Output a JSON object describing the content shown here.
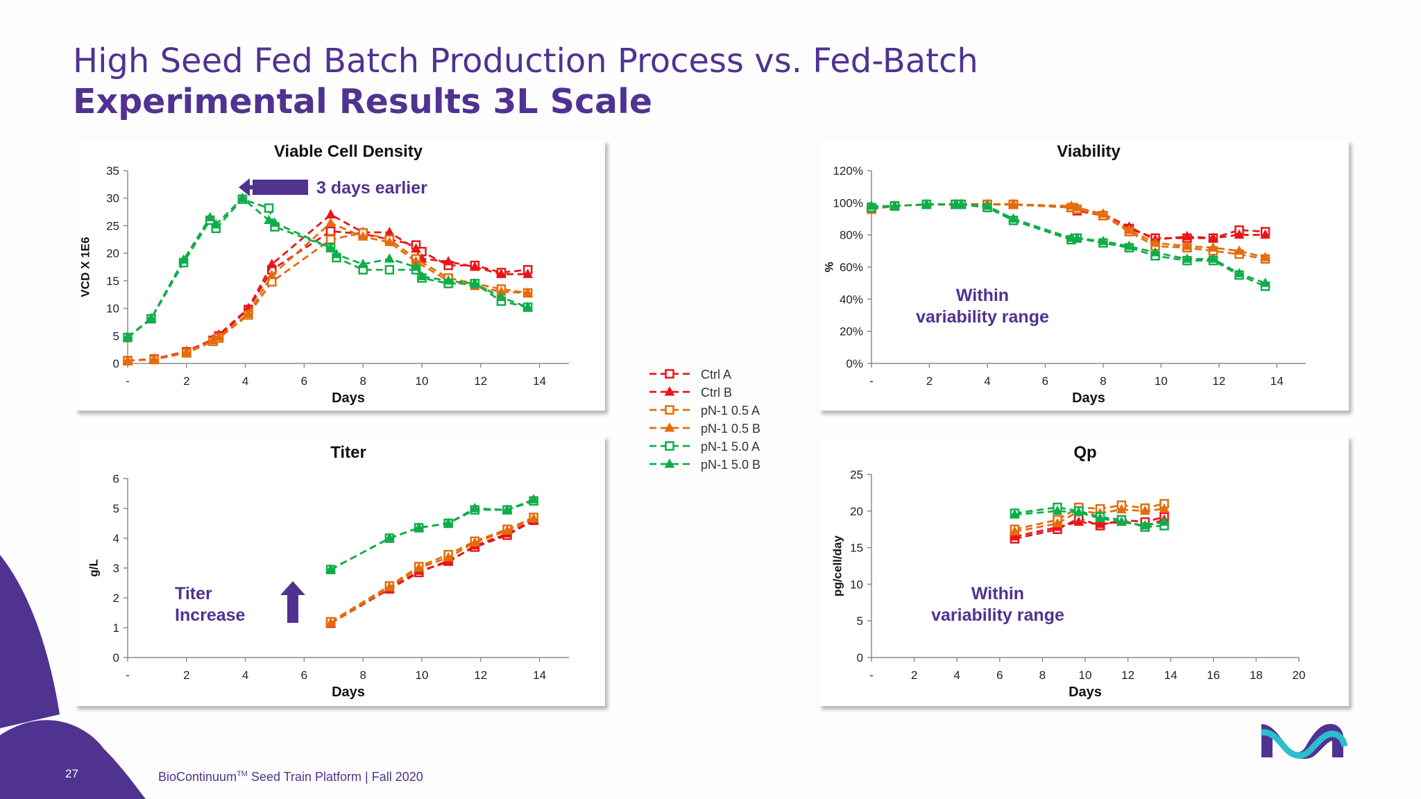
{
  "slide": {
    "title": "High Seed Fed Batch Production Process vs. Fed-Batch",
    "subtitle": "Experimental Results 3L Scale",
    "page_number": "27",
    "footer_prefix": "BioContinuum",
    "footer_trademark": "TM",
    "footer_suffix": " Seed Train Platform | Fall 2020"
  },
  "colors": {
    "brand": "#503291",
    "red": "#e8151b",
    "orange": "#e46c0a",
    "green": "#10ad4a",
    "logo_teal": "#2dbecd"
  },
  "legend": {
    "items": [
      {
        "label": "Ctrl A",
        "color": "#e8151b",
        "marker": "square"
      },
      {
        "label": "Ctrl B",
        "color": "#e8151b",
        "marker": "triangle"
      },
      {
        "label": "pN-1 0.5 A",
        "color": "#e46c0a",
        "marker": "square"
      },
      {
        "label": "pN-1 0.5 B",
        "color": "#e46c0a",
        "marker": "triangle"
      },
      {
        "label": "pN-1 5.0 A",
        "color": "#10ad4a",
        "marker": "square"
      },
      {
        "label": "pN-1 5.0 B",
        "color": "#10ad4a",
        "marker": "triangle"
      }
    ]
  },
  "chart_data": [
    {
      "id": "vcd",
      "type": "line",
      "title": "Viable Cell Density",
      "xlabel": "Days",
      "ylabel": "VCD X 1E6",
      "xlim": [
        0,
        15
      ],
      "xticks": [
        0,
        2,
        4,
        6,
        8,
        10,
        12,
        14
      ],
      "xticklabels": [
        "-",
        "2",
        "4",
        "6",
        "8",
        "10",
        "12",
        "14"
      ],
      "ylim": [
        0,
        35
      ],
      "yticks": [
        0,
        5,
        10,
        15,
        20,
        25,
        30,
        35
      ],
      "yticklabels": [
        "0",
        "5",
        "10",
        "15",
        "20",
        "25",
        "30",
        "35"
      ],
      "annotations": [
        {
          "text": "3 days earlier",
          "arrow": "left"
        }
      ],
      "series": [
        {
          "name": "Ctrl A",
          "x": [
            0,
            0.9,
            2,
            2.9,
            3.1,
            4.1,
            4.9,
            6.9,
            8,
            8.9,
            9.8,
            10,
            10.9,
            11.8,
            12.7,
            13.6
          ],
          "y": [
            0.5,
            0.8,
            2.1,
            4.2,
            5.0,
            9.8,
            17.0,
            24.0,
            23.5,
            22.5,
            21.5,
            20.3,
            17.8,
            17.8,
            16.5,
            17.0
          ]
        },
        {
          "name": "Ctrl B",
          "x": [
            0,
            0.9,
            2,
            2.9,
            3.1,
            4.1,
            4.9,
            6.9,
            8,
            8.9,
            9.8,
            10,
            10.9,
            11.8,
            12.7,
            13.6
          ],
          "y": [
            0.5,
            0.8,
            2.2,
            4.4,
            5.2,
            10.0,
            18.0,
            27.0,
            23.8,
            23.8,
            20.8,
            19.0,
            18.5,
            17.5,
            16.2,
            16.2
          ]
        },
        {
          "name": "pN-1 0.5 A",
          "x": [
            0,
            0.9,
            2,
            2.9,
            3.1,
            4.1,
            4.9,
            6.9,
            8,
            8.9,
            9.8,
            10.9,
            11.8,
            12.7,
            13.6
          ],
          "y": [
            0.5,
            0.7,
            1.9,
            4.0,
            4.6,
            8.8,
            14.8,
            22.5,
            23.7,
            22.5,
            19.0,
            15.5,
            14.5,
            13.5,
            12.8
          ]
        },
        {
          "name": "pN-1 0.5 B",
          "x": [
            0,
            0.9,
            2,
            2.9,
            3.1,
            4.1,
            4.9,
            6.9,
            8,
            8.9,
            9.8,
            10.9,
            11.8,
            12.7,
            13.6
          ],
          "y": [
            0.5,
            0.7,
            2.0,
            4.2,
            4.8,
            9.0,
            16.0,
            25.5,
            23.0,
            22.0,
            18.5,
            15.0,
            14.0,
            13.0,
            12.8
          ]
        },
        {
          "name": "pN-1 5.0 A",
          "x": [
            0,
            0.8,
            1.9,
            2.8,
            3,
            3.9,
            4.8,
            5,
            6.9,
            7.1,
            8,
            8.9,
            9.8,
            10,
            10.9,
            11.8,
            12.7,
            13.6
          ],
          "y": [
            4.7,
            8.1,
            18.3,
            26.0,
            24.5,
            29.8,
            28.2,
            24.8,
            21.0,
            19.2,
            17.0,
            17.0,
            17.0,
            15.5,
            14.5,
            14.5,
            11.3,
            10.2
          ]
        },
        {
          "name": "pN-1 5.0 B",
          "x": [
            0,
            0.8,
            1.9,
            2.8,
            3,
            3.9,
            4.8,
            5,
            6.9,
            7.1,
            8,
            8.9,
            9.8,
            10,
            10.9,
            11.8,
            12.7,
            13.6
          ],
          "y": [
            4.8,
            8.2,
            18.8,
            26.5,
            25.2,
            30.0,
            26.0,
            25.5,
            21.0,
            19.8,
            18.0,
            19.0,
            17.5,
            15.8,
            15.0,
            14.5,
            12.0,
            10.2
          ]
        }
      ]
    },
    {
      "id": "viability",
      "type": "line",
      "title": "Viability",
      "xlabel": "Days",
      "ylabel": "%",
      "xlim": [
        0,
        15
      ],
      "xticks": [
        0,
        2,
        4,
        6,
        8,
        10,
        12,
        14
      ],
      "xticklabels": [
        "-",
        "2",
        "4",
        "6",
        "8",
        "10",
        "12",
        "14"
      ],
      "ylim": [
        0,
        120
      ],
      "yticks": [
        0,
        20,
        40,
        60,
        80,
        100,
        120
      ],
      "yticklabels": [
        "0%",
        "20%",
        "40%",
        "60%",
        "80%",
        "100%",
        "120%"
      ],
      "annotations": [
        {
          "text": "Within variability range"
        }
      ],
      "series": [
        {
          "name": "Ctrl A",
          "x": [
            0,
            0.8,
            1.9,
            2.9,
            3.1,
            4,
            4.9,
            6.9,
            7.1,
            8,
            8.9,
            9.8,
            10.9,
            11.8,
            12.7,
            13.6
          ],
          "y": [
            97,
            98,
            99,
            99,
            99,
            99,
            99,
            97,
            95,
            92,
            84,
            78,
            78,
            78,
            83,
            82
          ]
        },
        {
          "name": "Ctrl B",
          "x": [
            0,
            0.8,
            1.9,
            2.9,
            3.1,
            4,
            4.9,
            6.9,
            7.1,
            8,
            8.9,
            9.8,
            10.9,
            11.8,
            12.7,
            13.6
          ],
          "y": [
            97,
            98,
            99,
            99,
            99,
            99,
            99,
            97,
            96,
            93,
            85,
            77,
            79,
            78,
            80,
            80
          ]
        },
        {
          "name": "pN-1 0.5 A",
          "x": [
            0,
            0.8,
            1.9,
            2.9,
            3.1,
            4,
            4.9,
            6.9,
            7.1,
            8,
            8.9,
            9.8,
            10.9,
            11.8,
            12.7,
            13.6
          ],
          "y": [
            96,
            98,
            99,
            99,
            99,
            99,
            99,
            97,
            96,
            92,
            82,
            73,
            72,
            70,
            68,
            65
          ]
        },
        {
          "name": "pN-1 0.5 B",
          "x": [
            0,
            0.8,
            1.9,
            2.9,
            3.1,
            4,
            4.9,
            6.9,
            7.1,
            8,
            8.9,
            9.8,
            10.9,
            11.8,
            12.7,
            13.6
          ],
          "y": [
            96,
            98,
            99,
            99,
            99,
            99,
            99,
            98,
            97,
            93,
            83,
            75,
            73,
            72,
            70,
            66
          ]
        },
        {
          "name": "pN-1 5.0 A",
          "x": [
            0,
            0.8,
            1.9,
            2.9,
            3.1,
            4,
            4.9,
            6.9,
            7.1,
            8,
            8.9,
            9.8,
            10.9,
            11.8,
            12.7,
            13.6
          ],
          "y": [
            97,
            98,
            99,
            99,
            99,
            97,
            89,
            77,
            78,
            75,
            72,
            67,
            64,
            64,
            55,
            48
          ]
        },
        {
          "name": "pN-1 5.0 B",
          "x": [
            0,
            0.8,
            1.9,
            2.9,
            3.1,
            4,
            4.9,
            6.9,
            7.1,
            8,
            8.9,
            9.8,
            10.9,
            11.8,
            12.7,
            13.6
          ],
          "y": [
            98,
            98,
            99,
            99,
            99,
            98,
            90,
            78,
            78,
            76,
            73,
            69,
            65,
            65,
            56,
            50
          ]
        }
      ]
    },
    {
      "id": "titer",
      "type": "line",
      "title": "Titer",
      "xlabel": "Days",
      "ylabel": "g/L",
      "xlim": [
        0,
        15
      ],
      "xticks": [
        0,
        2,
        4,
        6,
        8,
        10,
        12,
        14
      ],
      "xticklabels": [
        "-",
        "2",
        "4",
        "6",
        "8",
        "10",
        "12",
        "14"
      ],
      "ylim": [
        0,
        6
      ],
      "yticks": [
        0,
        1,
        2,
        3,
        4,
        5,
        6
      ],
      "yticklabels": [
        "0",
        "1",
        "2",
        "3",
        "4",
        "5",
        "6"
      ],
      "annotations": [
        {
          "text_line1": "Titer",
          "text_line2": "Increase",
          "arrow": "up"
        }
      ],
      "series": [
        {
          "name": "Ctrl A",
          "x": [
            6.9,
            8.9,
            9.9,
            10.9,
            11.8,
            12.9,
            13.8
          ],
          "y": [
            1.15,
            2.3,
            2.85,
            3.25,
            3.7,
            4.1,
            4.6
          ]
        },
        {
          "name": "Ctrl B",
          "x": [
            6.9,
            8.9,
            9.9,
            10.9,
            11.8,
            12.9,
            13.8
          ],
          "y": [
            1.15,
            2.3,
            2.9,
            3.2,
            3.75,
            4.15,
            4.6
          ]
        },
        {
          "name": "pN-1 0.5 A",
          "x": [
            6.9,
            8.9,
            9.9,
            10.9,
            11.8,
            12.9,
            13.8
          ],
          "y": [
            1.2,
            2.4,
            3.05,
            3.45,
            3.9,
            4.3,
            4.7
          ]
        },
        {
          "name": "pN-1 0.5 B",
          "x": [
            6.9,
            8.9,
            9.9,
            10.9,
            11.8,
            12.9,
            13.8
          ],
          "y": [
            1.15,
            2.35,
            3.0,
            3.35,
            3.85,
            4.25,
            4.65
          ]
        },
        {
          "name": "pN-1 5.0 A",
          "x": [
            6.9,
            8.9,
            9.9,
            10.9,
            11.8,
            12.9,
            13.8
          ],
          "y": [
            2.95,
            4.0,
            4.35,
            4.5,
            4.95,
            4.95,
            5.25
          ]
        },
        {
          "name": "pN-1 5.0 B",
          "x": [
            6.9,
            8.9,
            9.9,
            10.9,
            11.8,
            12.9,
            13.8
          ],
          "y": [
            2.95,
            4.0,
            4.35,
            4.5,
            5.0,
            4.95,
            5.3
          ]
        }
      ]
    },
    {
      "id": "qp",
      "type": "line",
      "title": "Qp",
      "xlabel": "Days",
      "ylabel": "pg/cell/day",
      "xlim": [
        0,
        20
      ],
      "xticks": [
        0,
        2,
        4,
        6,
        8,
        10,
        12,
        14,
        16,
        18,
        20
      ],
      "xticklabels": [
        "-",
        "2",
        "4",
        "6",
        "8",
        "10",
        "12",
        "14",
        "16",
        "18",
        "20"
      ],
      "ylim": [
        0,
        25
      ],
      "yticks": [
        0,
        5,
        10,
        15,
        20,
        25
      ],
      "yticklabels": [
        "0",
        "5",
        "10",
        "15",
        "20",
        "25"
      ],
      "annotations": [
        {
          "text": "Within variability range"
        }
      ],
      "series": [
        {
          "name": "Ctrl A",
          "x": [
            6.7,
            8.7,
            9.7,
            10.7,
            11.7,
            12.8,
            13.7
          ],
          "y": [
            16.2,
            17.5,
            19.0,
            18.0,
            18.8,
            18.5,
            19.2
          ]
        },
        {
          "name": "Ctrl B",
          "x": [
            6.7,
            8.7,
            9.7,
            10.7,
            11.7,
            12.8,
            13.7
          ],
          "y": [
            16.5,
            17.8,
            18.5,
            18.2,
            18.5,
            18.0,
            18.8
          ]
        },
        {
          "name": "pN-1 0.5 A",
          "x": [
            6.7,
            8.7,
            9.7,
            10.7,
            11.7,
            12.8,
            13.7
          ],
          "y": [
            17.5,
            18.8,
            20.5,
            20.3,
            20.8,
            20.4,
            21.0
          ]
        },
        {
          "name": "pN-1 0.5 B",
          "x": [
            6.7,
            8.7,
            9.7,
            10.7,
            11.7,
            12.8,
            13.7
          ],
          "y": [
            17.2,
            18.3,
            20.0,
            19.7,
            20.2,
            20.0,
            20.3
          ]
        },
        {
          "name": "pN-1 5.0 A",
          "x": [
            6.7,
            8.7,
            9.7,
            10.7,
            11.7,
            12.8,
            13.7
          ],
          "y": [
            19.7,
            20.5,
            20.0,
            19.2,
            18.8,
            17.8,
            18.0
          ]
        },
        {
          "name": "pN-1 5.0 B",
          "x": [
            6.7,
            8.7,
            9.7,
            10.7,
            11.7,
            12.8,
            13.7
          ],
          "y": [
            19.5,
            20.0,
            19.8,
            19.0,
            18.5,
            18.0,
            18.5
          ]
        }
      ]
    }
  ]
}
